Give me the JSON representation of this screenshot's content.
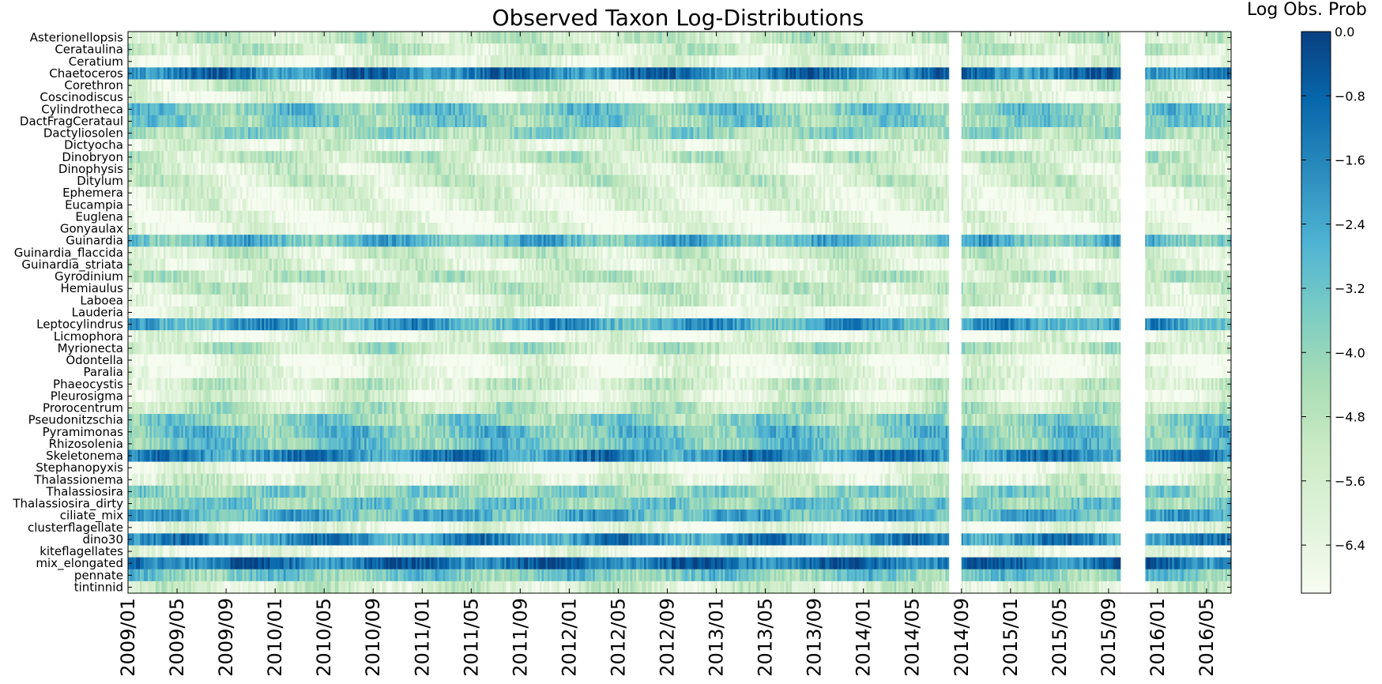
{
  "chart_data": {
    "type": "heatmap",
    "title": "Observed Taxon Log-Distributions",
    "colorbar": {
      "label": "Log Obs. Prob",
      "ticks": [
        "0.0",
        "−0.8",
        "−1.6",
        "−2.4",
        "−3.2",
        "−4.0",
        "−4.8",
        "−5.6",
        "−6.4"
      ],
      "tick_values": [
        0.0,
        -0.8,
        -1.6,
        -2.4,
        -3.2,
        -4.0,
        -4.8,
        -5.6,
        -6.4
      ],
      "range": [
        -7.0,
        0.0
      ],
      "colormap": "GnBu",
      "colors": [
        "#f7fcf0",
        "#e0f3db",
        "#ccebc5",
        "#a8ddb5",
        "#7bccc4",
        "#4eb3d3",
        "#2b8cbe",
        "#0868ac",
        "#084081"
      ]
    },
    "x_tick_labels": [
      "2009/01",
      "2009/05",
      "2009/09",
      "2010/01",
      "2010/05",
      "2010/09",
      "2011/01",
      "2011/05",
      "2011/09",
      "2012/01",
      "2012/05",
      "2012/09",
      "2013/01",
      "2013/05",
      "2013/09",
      "2014/01",
      "2014/05",
      "2014/09",
      "2015/01",
      "2015/05",
      "2015/09",
      "2016/01",
      "2016/05"
    ],
    "x_range": [
      "2009/01",
      "2016/07"
    ],
    "data_gaps": [
      [
        "2014/08",
        "2014/09"
      ],
      [
        "2015/10",
        "2015/12"
      ]
    ],
    "taxa": [
      {
        "name": "Asterionellopsis",
        "mean": -5.3
      },
      {
        "name": "Cerataulina",
        "mean": -5.4
      },
      {
        "name": "Ceratium",
        "mean": -6.4
      },
      {
        "name": "Chaetoceros",
        "mean": -1.4
      },
      {
        "name": "Corethron",
        "mean": -5.6
      },
      {
        "name": "Coscinodiscus",
        "mean": -6.3
      },
      {
        "name": "Cylindrotheca",
        "mean": -3.6
      },
      {
        "name": "DactFragCerataul",
        "mean": -3.8
      },
      {
        "name": "Dactyliosolen",
        "mean": -4.3
      },
      {
        "name": "Dictyocha",
        "mean": -6.1
      },
      {
        "name": "Dinobryon",
        "mean": -5.2
      },
      {
        "name": "Dinophysis",
        "mean": -5.9
      },
      {
        "name": "Ditylum",
        "mean": -5.5
      },
      {
        "name": "Ephemera",
        "mean": -6.2
      },
      {
        "name": "Eucampia",
        "mean": -6.3
      },
      {
        "name": "Euglena",
        "mean": -6.5
      },
      {
        "name": "Gonyaulax",
        "mean": -6.6
      },
      {
        "name": "Guinardia",
        "mean": -3.0
      },
      {
        "name": "Guinardia_flaccida",
        "mean": -5.6
      },
      {
        "name": "Guinardia_striata",
        "mean": -6.0
      },
      {
        "name": "Gyrodinium",
        "mean": -5.2
      },
      {
        "name": "Hemiaulus",
        "mean": -5.4
      },
      {
        "name": "Laboea",
        "mean": -5.9
      },
      {
        "name": "Lauderia",
        "mean": -6.6
      },
      {
        "name": "Leptocylindrus",
        "mean": -2.4
      },
      {
        "name": "Licmophora",
        "mean": -6.5
      },
      {
        "name": "Myrionecta",
        "mean": -5.0
      },
      {
        "name": "Odontella",
        "mean": -6.6
      },
      {
        "name": "Paralia",
        "mean": -6.4
      },
      {
        "name": "Phaeocystis",
        "mean": -5.4
      },
      {
        "name": "Pleurosigma",
        "mean": -6.1
      },
      {
        "name": "Prorocentrum",
        "mean": -5.0
      },
      {
        "name": "Pseudonitzschia",
        "mean": -4.0
      },
      {
        "name": "Pyramimonas",
        "mean": -3.3
      },
      {
        "name": "Rhizosolenia",
        "mean": -3.5
      },
      {
        "name": "Skeletonema",
        "mean": -1.8
      },
      {
        "name": "Stephanopyxis",
        "mean": -6.7
      },
      {
        "name": "Thalassionema",
        "mean": -5.8
      },
      {
        "name": "Thalassiosira",
        "mean": -4.1
      },
      {
        "name": "Thalassiosira_dirty",
        "mean": -3.7
      },
      {
        "name": "ciliate_mix",
        "mean": -2.8
      },
      {
        "name": "clusterflagellate",
        "mean": -6.6
      },
      {
        "name": "dino30",
        "mean": -1.9
      },
      {
        "name": "kiteflagellates",
        "mean": -6.6
      },
      {
        "name": "mix_elongated",
        "mean": -1.1
      },
      {
        "name": "pennate",
        "mean": -3.6
      },
      {
        "name": "tintinnid",
        "mean": -5.7
      }
    ]
  }
}
